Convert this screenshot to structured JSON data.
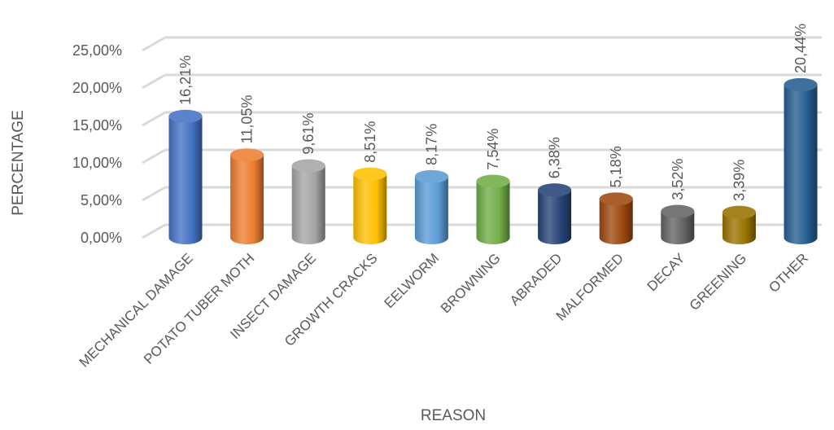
{
  "chart_data": {
    "type": "bar",
    "style": "3d-cylinder",
    "title": "",
    "xlabel": "REASON",
    "ylabel": "PERCENTAGE",
    "ylim": [
      0,
      25
    ],
    "yticks": [
      "0,00%",
      "5,00%",
      "10,00%",
      "15,00%",
      "20,00%",
      "25,00%"
    ],
    "grid": true,
    "categories": [
      "MECHANICAL DAMAGE",
      "POTATO TUBER MOTH",
      "INSECT DAMAGE",
      "GROWTH CRACKS",
      "EELWORM",
      "BROWNING",
      "ABRADED",
      "MALFORMED",
      "DECAY",
      "GREENING",
      "OTHER"
    ],
    "values": [
      16.21,
      11.05,
      9.61,
      8.51,
      8.17,
      7.54,
      6.38,
      5.18,
      3.52,
      3.39,
      20.44
    ],
    "data_labels": [
      "16,21%",
      "11,05%",
      "9,61%",
      "8,51%",
      "8,17%",
      "7,54%",
      "6,38%",
      "5,18%",
      "3,52%",
      "3,39%",
      "20,44%"
    ],
    "colors": [
      "#4472C4",
      "#ED7D31",
      "#A5A5A5",
      "#FFC000",
      "#5B9BD5",
      "#70AD47",
      "#264478",
      "#9E480E",
      "#636363",
      "#997300",
      "#255E91"
    ]
  }
}
